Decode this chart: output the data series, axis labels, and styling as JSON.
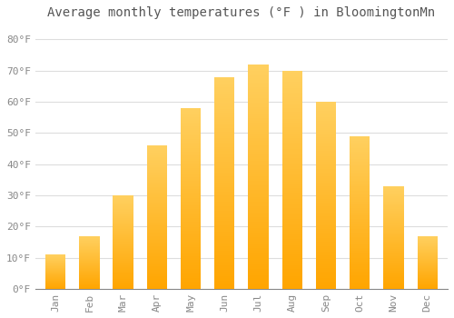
{
  "title": "Average monthly temperatures (°F ) in BloomingtonMn",
  "months": [
    "Jan",
    "Feb",
    "Mar",
    "Apr",
    "May",
    "Jun",
    "Jul",
    "Aug",
    "Sep",
    "Oct",
    "Nov",
    "Dec"
  ],
  "values": [
    11,
    17,
    30,
    46,
    58,
    68,
    72,
    70,
    60,
    49,
    33,
    17
  ],
  "bar_color_bottom": "#FFA500",
  "bar_color_top": "#FFD060",
  "background_color": "#FFFFFF",
  "grid_color": "#DDDDDD",
  "yticks": [
    0,
    10,
    20,
    30,
    40,
    50,
    60,
    70,
    80
  ],
  "ytick_labels": [
    "0°F",
    "10°F",
    "20°F",
    "30°F",
    "40°F",
    "50°F",
    "60°F",
    "70°F",
    "80°F"
  ],
  "ylim": [
    0,
    85
  ],
  "title_fontsize": 10,
  "tick_fontsize": 8,
  "tick_color": "#888888",
  "xlabel_rotation": 90,
  "bar_width": 0.6,
  "figsize": [
    5.0,
    3.5
  ],
  "dpi": 100
}
